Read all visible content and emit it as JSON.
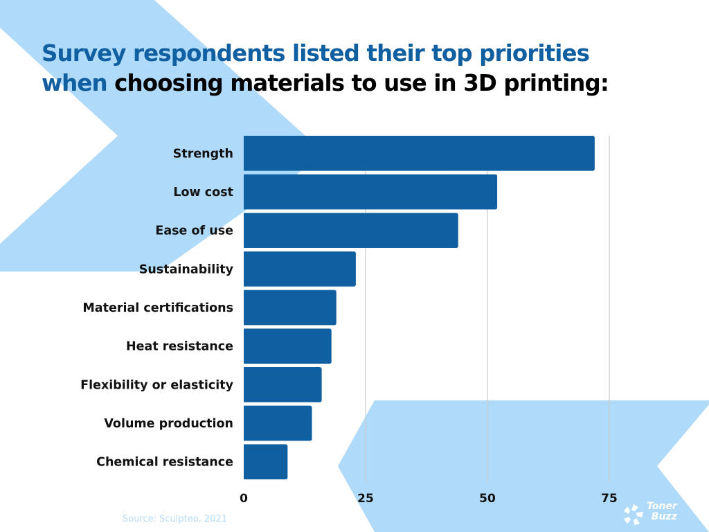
{
  "title": {
    "part1_blue": "Survey respondents listed their top priorities",
    "part2_blue": "when",
    "part3_black": "choosing materials to use in 3D printing:"
  },
  "colors": {
    "bar": "#105fa0",
    "title_blue": "#105fa0",
    "background_shape": "#b0dafa",
    "gridline": "#cccccc",
    "source_text": "#b5dbf9"
  },
  "source": "Source: Sculpteo, 2021",
  "logo": {
    "line1": "Toner",
    "line2": "Buzz",
    "icon": "shutter-swirl-icon"
  },
  "chart_data": {
    "type": "bar",
    "orientation": "horizontal",
    "title": "Survey respondents listed their top priorities when choosing materials to use in 3D printing:",
    "xlabel": "",
    "ylabel": "",
    "categories": [
      "Strength",
      "Low cost",
      "Ease of use",
      "Sustainability",
      "Material certifications",
      "Heat resistance",
      "Flexibility or elasticity",
      "Volume production",
      "Chemical resistance"
    ],
    "values": [
      72,
      52,
      44,
      23,
      19,
      18,
      16,
      14,
      9
    ],
    "xlim": [
      0,
      85
    ],
    "xticks": [
      0,
      25,
      50,
      75
    ],
    "xtick_labels": [
      "0",
      "25",
      "50",
      "75"
    ],
    "grid": true,
    "legend": "none"
  }
}
